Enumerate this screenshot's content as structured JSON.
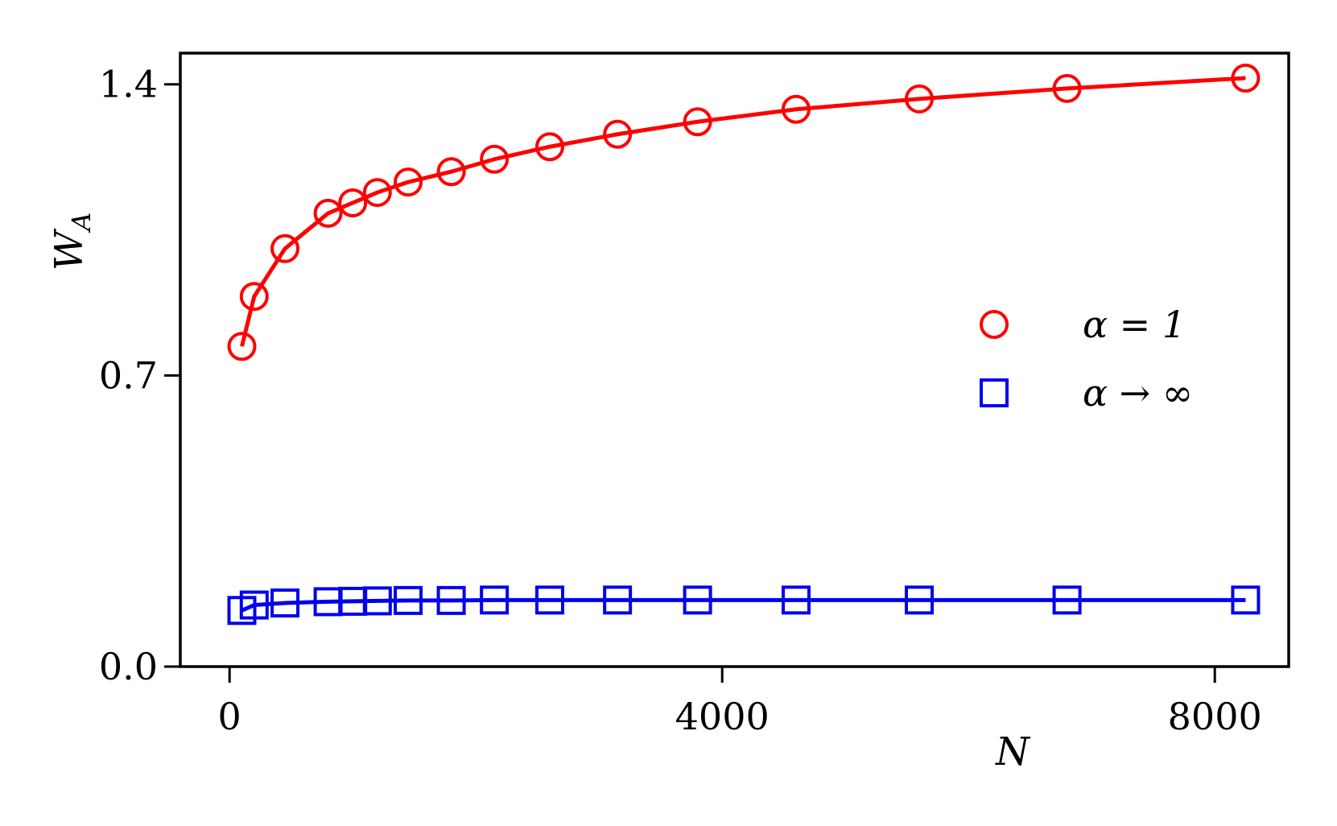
{
  "chart_data": {
    "type": "line",
    "xlabel": "N",
    "ylabel": "W_A",
    "xlim": [
      -400,
      8600
    ],
    "ylim": [
      0,
      1.475
    ],
    "xticks": [
      {
        "value": 0,
        "label": "0"
      },
      {
        "value": 4000,
        "label": "4000"
      },
      {
        "value": 8000,
        "label": "8000"
      }
    ],
    "yticks": [
      {
        "value": 0.0,
        "label": "0.0"
      },
      {
        "value": 0.7,
        "label": "0.7"
      },
      {
        "value": 1.4,
        "label": "1.4"
      }
    ],
    "legend_position": "right",
    "grid": false,
    "x": [
      100,
      200,
      450,
      800,
      1000,
      1200,
      1450,
      1800,
      2150,
      2600,
      3150,
      3800,
      4600,
      5600,
      6800,
      8250
    ],
    "series": [
      {
        "name": "α = 1",
        "color": "#ff0000",
        "marker": "circle",
        "values": [
          0.77,
          0.89,
          1.005,
          1.09,
          1.115,
          1.14,
          1.165,
          1.19,
          1.22,
          1.25,
          1.28,
          1.31,
          1.34,
          1.365,
          1.39,
          1.415
        ]
      },
      {
        "name": "α → ∞",
        "color": "#0000ee",
        "marker": "square",
        "values": [
          0.135,
          0.148,
          0.153,
          0.156,
          0.157,
          0.158,
          0.159,
          0.159,
          0.16,
          0.16,
          0.16,
          0.16,
          0.16,
          0.16,
          0.16,
          0.16
        ]
      }
    ]
  }
}
